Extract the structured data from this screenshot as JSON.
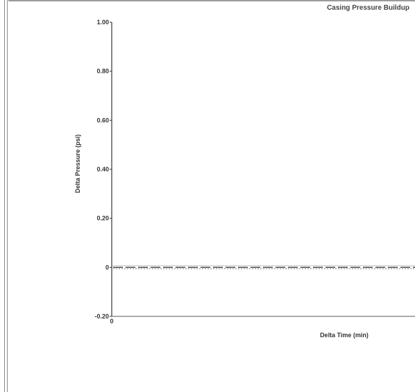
{
  "chart_data": {
    "type": "line",
    "title": "Casing Pressure Buildup",
    "xlabel": "Delta Time (min)",
    "ylabel": "Delta Pressure (psi)",
    "ylim": [
      -0.2,
      1.0
    ],
    "yticks": [
      "1.00",
      "0.80",
      "0.60",
      "0.40",
      "0.20",
      "0",
      "-0.20"
    ],
    "ytick_values": [
      1.0,
      0.8,
      0.6,
      0.4,
      0.2,
      0,
      -0.2
    ],
    "xticks": [
      "0"
    ],
    "grid": false,
    "series": [
      {
        "values": [
          0,
          0,
          0,
          0,
          0,
          0,
          0,
          0,
          0,
          0,
          0,
          0,
          0,
          0
        ],
        "style": "dashed"
      },
      {
        "values": [
          0,
          0,
          0,
          0,
          0,
          0,
          0,
          0,
          0,
          0,
          0,
          0,
          0,
          0
        ],
        "style": "dotted"
      }
    ]
  }
}
